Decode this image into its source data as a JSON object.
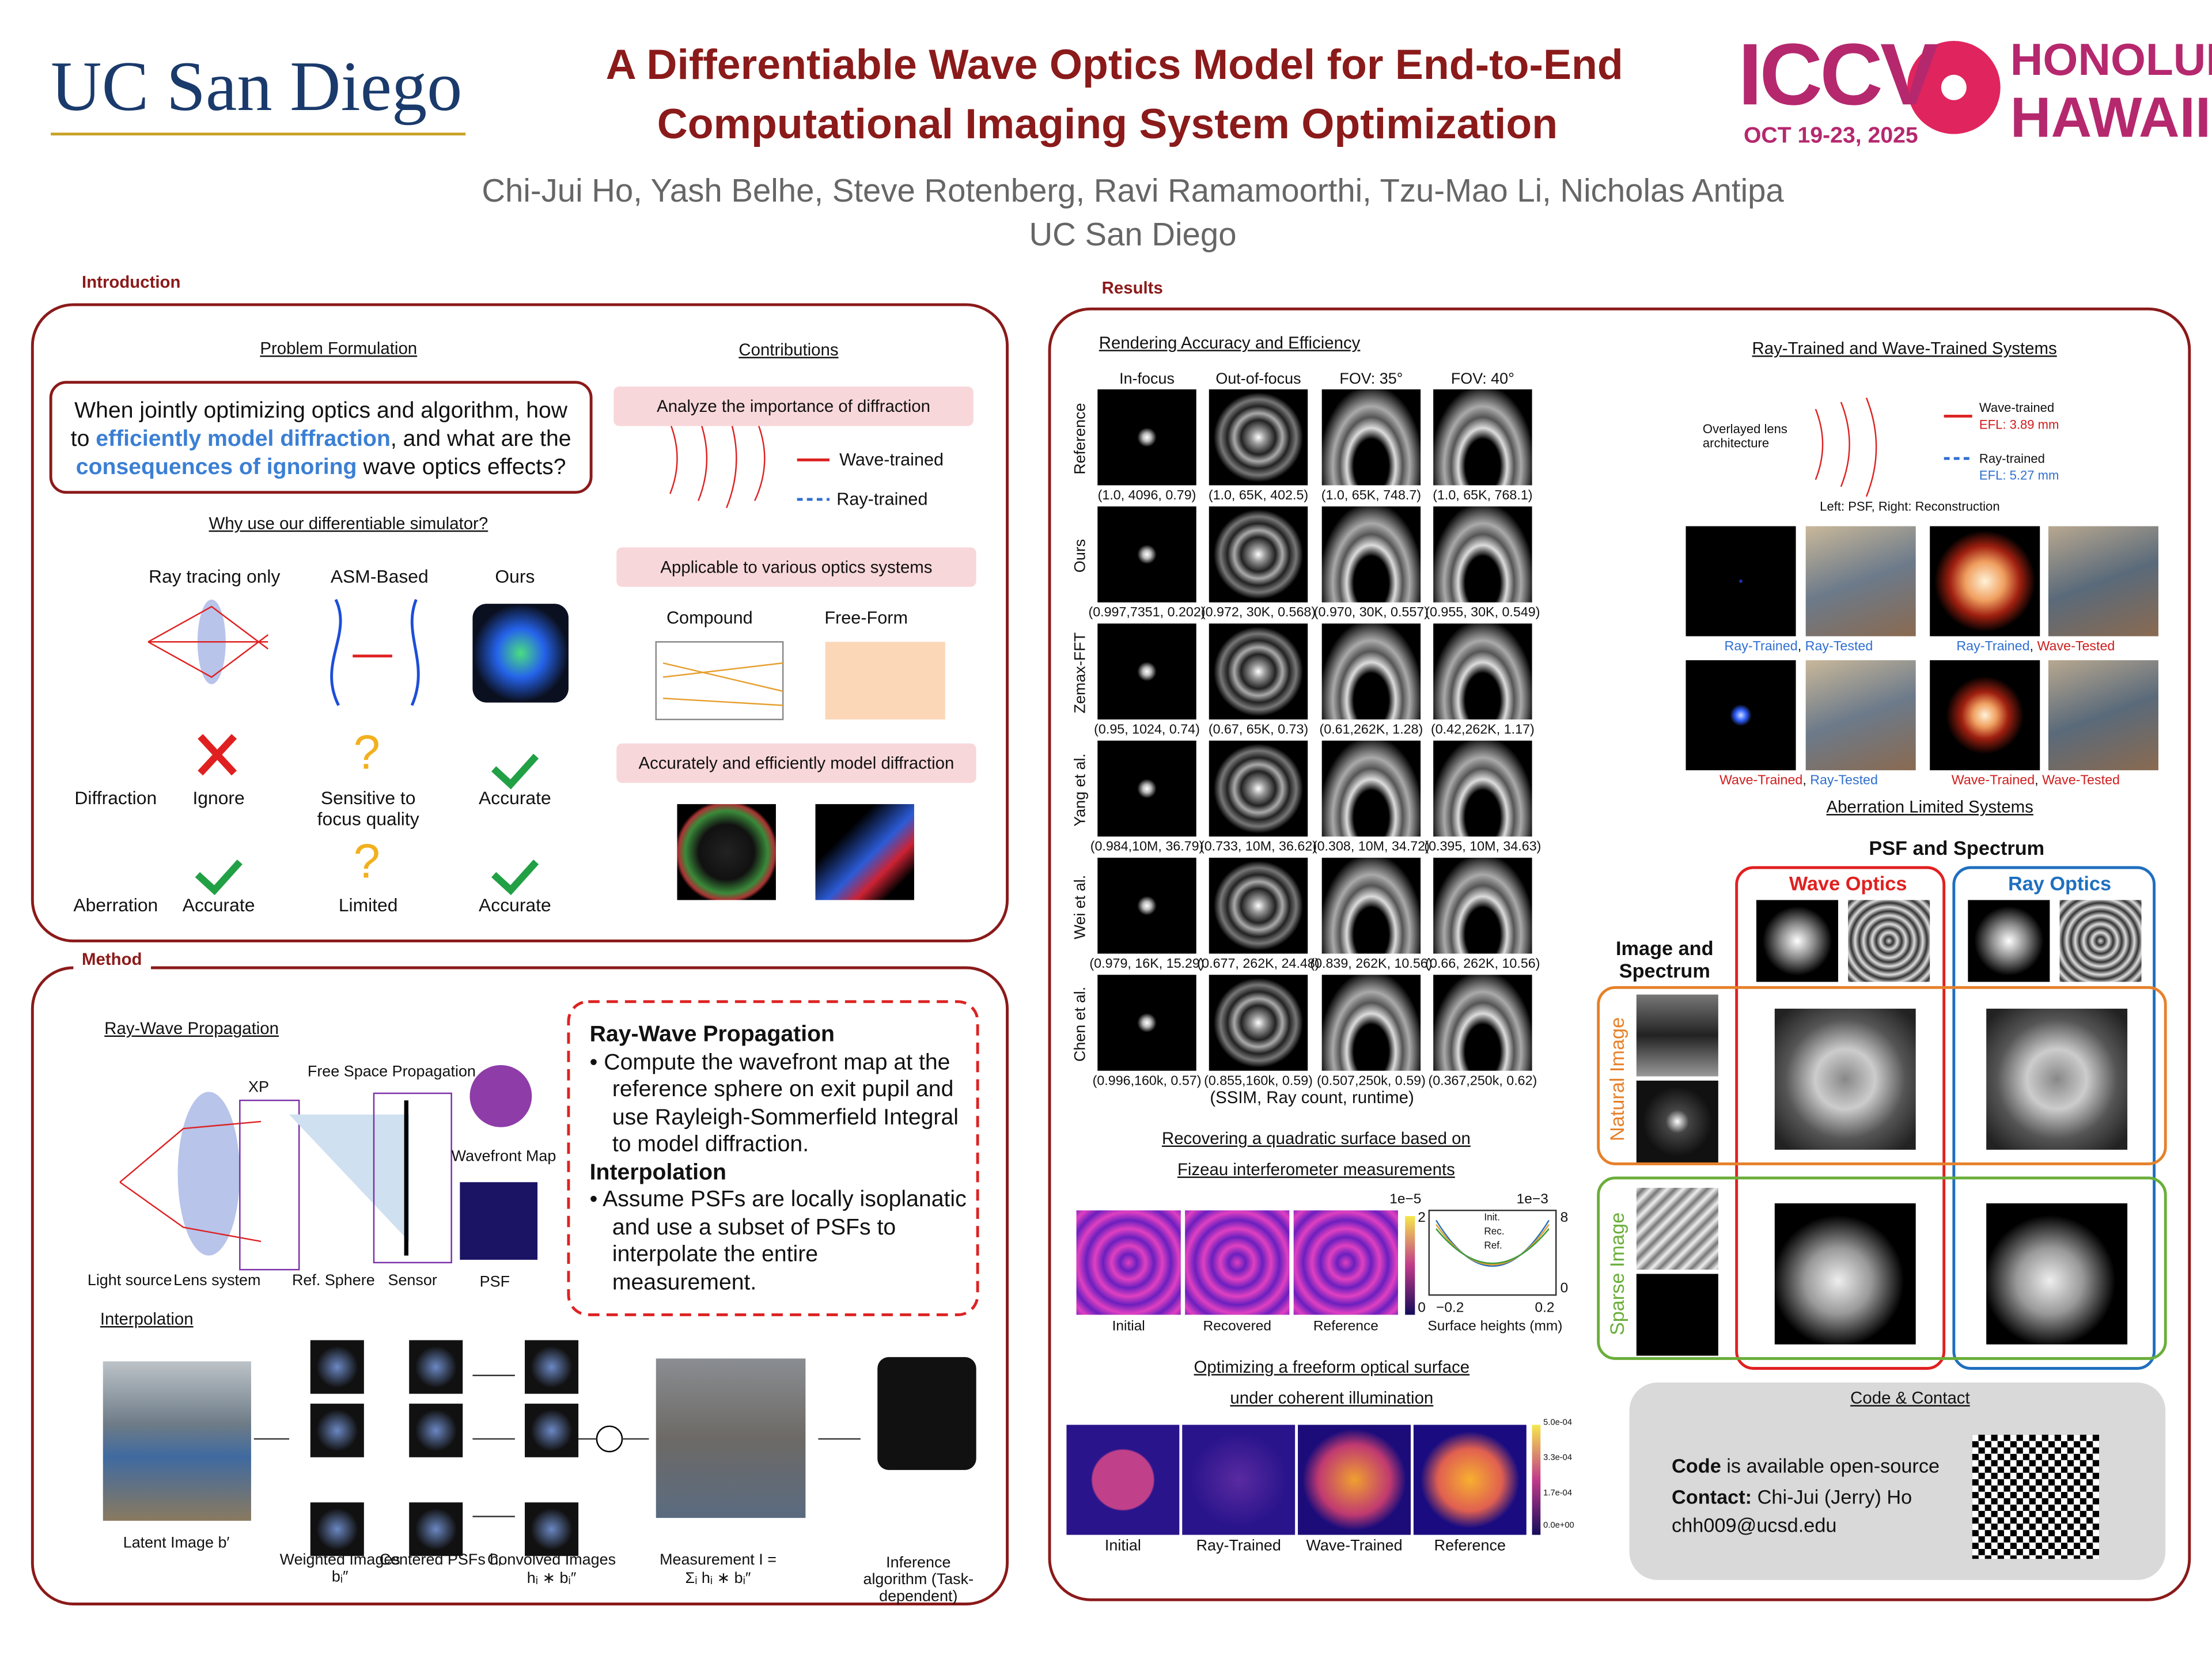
{
  "header": {
    "logo_left": "UC San Diego",
    "title_line1": "A Differentiable Wave Optics Model for End-to-End",
    "title_line2": "Computational Imaging System Optimization",
    "authors": "Chi-Jui Ho, Yash Belhe, Steve Rotenberg, Ravi Ramamoorthi, Tzu-Mao Li, Nicholas Antipa",
    "affiliation": "UC San Diego",
    "conference": "ICCV",
    "dates": "OCT 19-23, 2025",
    "location_line1": "HONOLULU",
    "location_line2": "HAWAII"
  },
  "introduction": {
    "heading": "Introduction",
    "problem_heading": "Problem Formulation",
    "problem_text": [
      {
        "text": "When jointly optimizing optics and algorithm, how to ",
        "color": "#111111"
      },
      {
        "text": "efficiently model diffraction",
        "color": "#3b7fd4"
      },
      {
        "text": ", and what are the ",
        "color": "#111111"
      },
      {
        "text": "consequences of ignoring",
        "color": "#3b7fd4"
      },
      {
        "text": " wave optics effects?",
        "color": "#111111"
      }
    ],
    "why_heading": "Why use our differentiable simulator?",
    "methods": [
      "Ray tracing only",
      "ASM-Based",
      "Ours"
    ],
    "rows": [
      {
        "name": "Diffraction",
        "cells": [
          "Ignore",
          "Sensitive to focus quality",
          "Accurate"
        ]
      },
      {
        "name": "Aberration",
        "cells": [
          "Accurate",
          "Limited",
          "Accurate"
        ]
      }
    ],
    "contributions_heading": "Contributions",
    "contributions": [
      "Analyze the importance of diffraction",
      "Applicable to various optics systems",
      "Accurately and efficiently model diffraction"
    ],
    "legend": [
      "Wave-trained",
      "Ray-trained"
    ],
    "systems": [
      "Compound",
      "Free-Form"
    ]
  },
  "method": {
    "heading": "Method",
    "ray_wave_heading": "Ray-Wave Propagation",
    "diagram_labels": [
      "XP",
      "Free Space Propagation",
      "Wavefront Map",
      "PSF",
      "Light source",
      "Lens system",
      "Ref. Sphere",
      "Sensor"
    ],
    "box": [
      {
        "title": "Ray-Wave Propagation",
        "bullet": "Compute the wavefront map at the reference sphere on exit pupil and use Rayleigh-Sommerfield Integral to model diffraction."
      },
      {
        "title": "Interpolation",
        "bullet": "Assume PSFs are locally isoplanatic and use a subset of PSFs to interpolate the entire measurement."
      }
    ],
    "interpolation_heading": "Interpolation",
    "pipeline_labels": [
      "Latent Image b′",
      "Weighted Images bᵢ″",
      "Centered PSFs hᵢ",
      "Convolved Images hᵢ ∗ bᵢ″",
      "Measurement I = Σᵢ hᵢ ∗ bᵢ″",
      "Inference algorithm (Task-dependent)"
    ]
  },
  "results": {
    "heading": "Results",
    "rendering_heading": "Rendering Accuracy and Efficiency",
    "columns": [
      "In-focus",
      "Out-of-focus",
      "FOV: 35°",
      "FOV: 40°"
    ],
    "rows": [
      {
        "name": "Reference",
        "captions": [
          "(1.0, 4096, 0.79)",
          "(1.0, 65K, 402.5)",
          "(1.0, 65K, 748.7)",
          "(1.0, 65K, 768.1)"
        ]
      },
      {
        "name": "Ours",
        "captions": [
          "(0.997,7351, 0.202)",
          "(0.972, 30K, 0.568)",
          "(0.970, 30K, 0.557)",
          "(0.955, 30K, 0.549)"
        ]
      },
      {
        "name": "Zemax-FFT",
        "captions": [
          "(0.95, 1024, 0.74)",
          "(0.67, 65K, 0.73)",
          "(0.61,262K, 1.28)",
          "(0.42,262K, 1.17)"
        ]
      },
      {
        "name": "Yang et al.",
        "captions": [
          "(0.984,10M, 36.79)",
          "(0.733, 10M, 36.62)",
          "(0.308, 10M, 34.72)",
          "(0.395, 10M, 34.63)"
        ]
      },
      {
        "name": "Wei et al.",
        "captions": [
          "(0.979, 16K, 15.29)",
          "(0.677, 262K, 24.48)",
          "(0.839, 262K, 10.56)",
          "(0.66, 262K, 10.56)"
        ]
      },
      {
        "name": "Chen et al.",
        "captions": [
          "(0.996,160k, 0.57)",
          "(0.855,160k, 0.59)",
          "(0.507,250k, 0.59)",
          "(0.367,250k, 0.62)"
        ]
      }
    ],
    "rendering_note": "(SSIM, Ray count, runtime)",
    "fizeau_heading": [
      "Recovering a quadratic surface based on",
      "Fizeau interferometer measurements"
    ],
    "fizeau_labels": [
      "Initial",
      "Recovered",
      "Reference"
    ],
    "fizeau_colorbar": [
      "1e−5",
      "2",
      "0"
    ],
    "fizeau_plot": {
      "scale": "1e−3",
      "legend": [
        "Init.",
        "Rec.",
        "Ref."
      ],
      "xticks": [
        "−0.2",
        "0.2"
      ],
      "yticks": [
        "8",
        "0"
      ],
      "xlabel": "Surface heights (mm)"
    },
    "freeform_heading": [
      "Optimizing a freeform optical surface",
      "under coherent illumination"
    ],
    "freeform_labels": [
      "Initial",
      "Ray-Trained",
      "Wave-Trained",
      "Reference"
    ],
    "freeform_colorbar": [
      "5.0e-04",
      "3.3e-04",
      "1.7e-04",
      "0.0e+00"
    ],
    "trained_heading": "Ray-Trained and Wave-Trained Systems",
    "trained_labels": [
      "Overlayed lens architecture",
      "Wave-trained",
      "EFL: 3.89 mm",
      "Ray-trained",
      "EFL: 5.27 mm",
      "Left: PSF, Right: Reconstruction"
    ],
    "trained_captions": [
      [
        {
          "text": "Ray-Trained",
          "color": "#2f6fd0"
        },
        {
          "text": ", ",
          "color": "#111111"
        },
        {
          "text": "Ray-Tested",
          "color": "#2f6fd0"
        }
      ],
      [
        {
          "text": "Ray-Trained",
          "color": "#2f6fd0"
        },
        {
          "text": ", ",
          "color": "#111111"
        },
        {
          "text": "Wave-Tested",
          "color": "#d01c1c"
        }
      ],
      [
        {
          "text": "Wave-Trained",
          "color": "#d01c1c"
        },
        {
          "text": ", ",
          "color": "#111111"
        },
        {
          "text": "Ray-Tested",
          "color": "#2f6fd0"
        }
      ],
      [
        {
          "text": "Wave-Trained",
          "color": "#d01c1c"
        },
        {
          "text": ", ",
          "color": "#111111"
        },
        {
          "text": "Wave-Tested",
          "color": "#d01c1c"
        }
      ]
    ],
    "aberration_heading": "Aberration Limited Systems",
    "aberration_labels": [
      "PSF and Spectrum",
      "Wave Optics",
      "Ray Optics",
      "Image and Spectrum",
      "Natural Image",
      "Sparse Image"
    ],
    "contact": {
      "heading": "Code & Contact",
      "code_label": "Code",
      "code_text": " is available open-source",
      "contact_label": "Contact:",
      "contact_name": " Chi-Jui (Jerry) Ho",
      "email": "chh009@ucsd.edu"
    }
  }
}
